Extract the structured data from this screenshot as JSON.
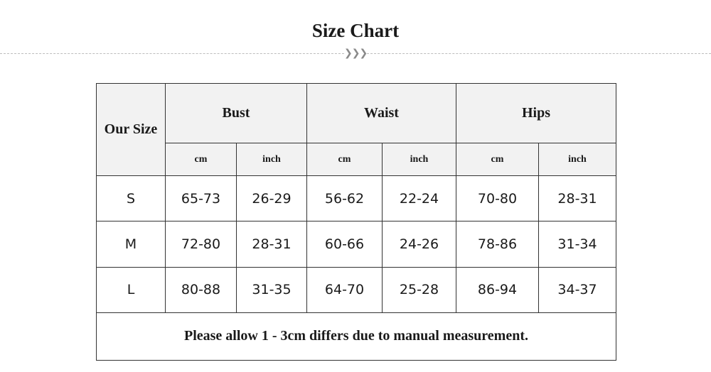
{
  "page": {
    "title": "Size Chart",
    "divider_icon": "chevron-triple-right-icon"
  },
  "table": {
    "corner_label": "Our Size",
    "groups": [
      "Bust",
      "Waist",
      "Hips"
    ],
    "units": [
      "cm",
      "inch",
      "cm",
      "inch",
      "cm",
      "inch"
    ],
    "rows": [
      {
        "size": "S",
        "values": [
          "65-73",
          "26-29",
          "56-62",
          "22-24",
          "70-80",
          "28-31"
        ]
      },
      {
        "size": "M",
        "values": [
          "72-80",
          "28-31",
          "60-66",
          "24-26",
          "78-86",
          "31-34"
        ]
      },
      {
        "size": "L",
        "values": [
          "80-88",
          "31-35",
          "64-70",
          "25-28",
          "86-94",
          "34-37"
        ]
      }
    ],
    "note": "Please allow 1 - 3cm differs due to manual measurement."
  },
  "colors": {
    "header_bg": "#f2f2f2",
    "border": "#333333",
    "divider": "#bdbdbd"
  }
}
